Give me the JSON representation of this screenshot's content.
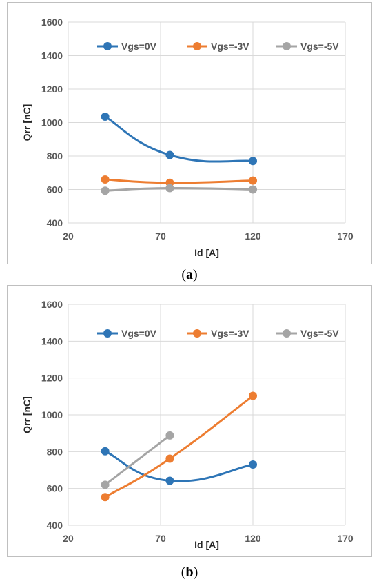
{
  "colors": {
    "grid": "#d9d9d9",
    "axis_text": "#595959",
    "label_text": "#262626",
    "border": "#bfbfbf"
  },
  "chart_data": [
    {
      "panel": "a",
      "caption_open": "(",
      "caption_letter": "a",
      "caption_close": ")",
      "type": "line",
      "title": "",
      "xlabel": "Id [A]",
      "ylabel": "Qrr [nC]",
      "xlim": [
        20,
        170
      ],
      "ylim": [
        400,
        1600
      ],
      "xticks": [
        20,
        70,
        120,
        170
      ],
      "yticks": [
        400,
        600,
        800,
        1000,
        1200,
        1400,
        1600
      ],
      "grid": true,
      "smooth": true,
      "legend_position": "top",
      "series": [
        {
          "name": "Vgs=0V",
          "color": "#2e75b6",
          "x": [
            40,
            75,
            120
          ],
          "y": [
            1035,
            806,
            770
          ]
        },
        {
          "name": "Vgs=-3V",
          "color": "#ed7d31",
          "x": [
            40,
            75,
            120
          ],
          "y": [
            660,
            640,
            653
          ]
        },
        {
          "name": "Vgs=-5V",
          "color": "#a5a5a5",
          "x": [
            40,
            75,
            120
          ],
          "y": [
            593,
            608,
            600
          ]
        }
      ]
    },
    {
      "panel": "b",
      "caption_open": "(",
      "caption_letter": "b",
      "caption_close": ")",
      "type": "line",
      "title": "",
      "xlabel": "Id [A]",
      "ylabel": "Qrr [nC]",
      "xlim": [
        20,
        170
      ],
      "ylim": [
        400,
        1600
      ],
      "xticks": [
        20,
        70,
        120,
        170
      ],
      "yticks": [
        400,
        600,
        800,
        1000,
        1200,
        1400,
        1600
      ],
      "grid": true,
      "smooth": true,
      "legend_position": "top",
      "series": [
        {
          "name": "Vgs=0V",
          "color": "#2e75b6",
          "x": [
            40,
            75,
            120
          ],
          "y": [
            802,
            642,
            730
          ]
        },
        {
          "name": "Vgs=-3V",
          "color": "#ed7d31",
          "x": [
            40,
            75,
            120
          ],
          "y": [
            553,
            762,
            1103
          ]
        },
        {
          "name": "Vgs=-5V",
          "color": "#a5a5a5",
          "x": [
            40,
            75
          ],
          "y": [
            620,
            888
          ]
        }
      ]
    }
  ]
}
